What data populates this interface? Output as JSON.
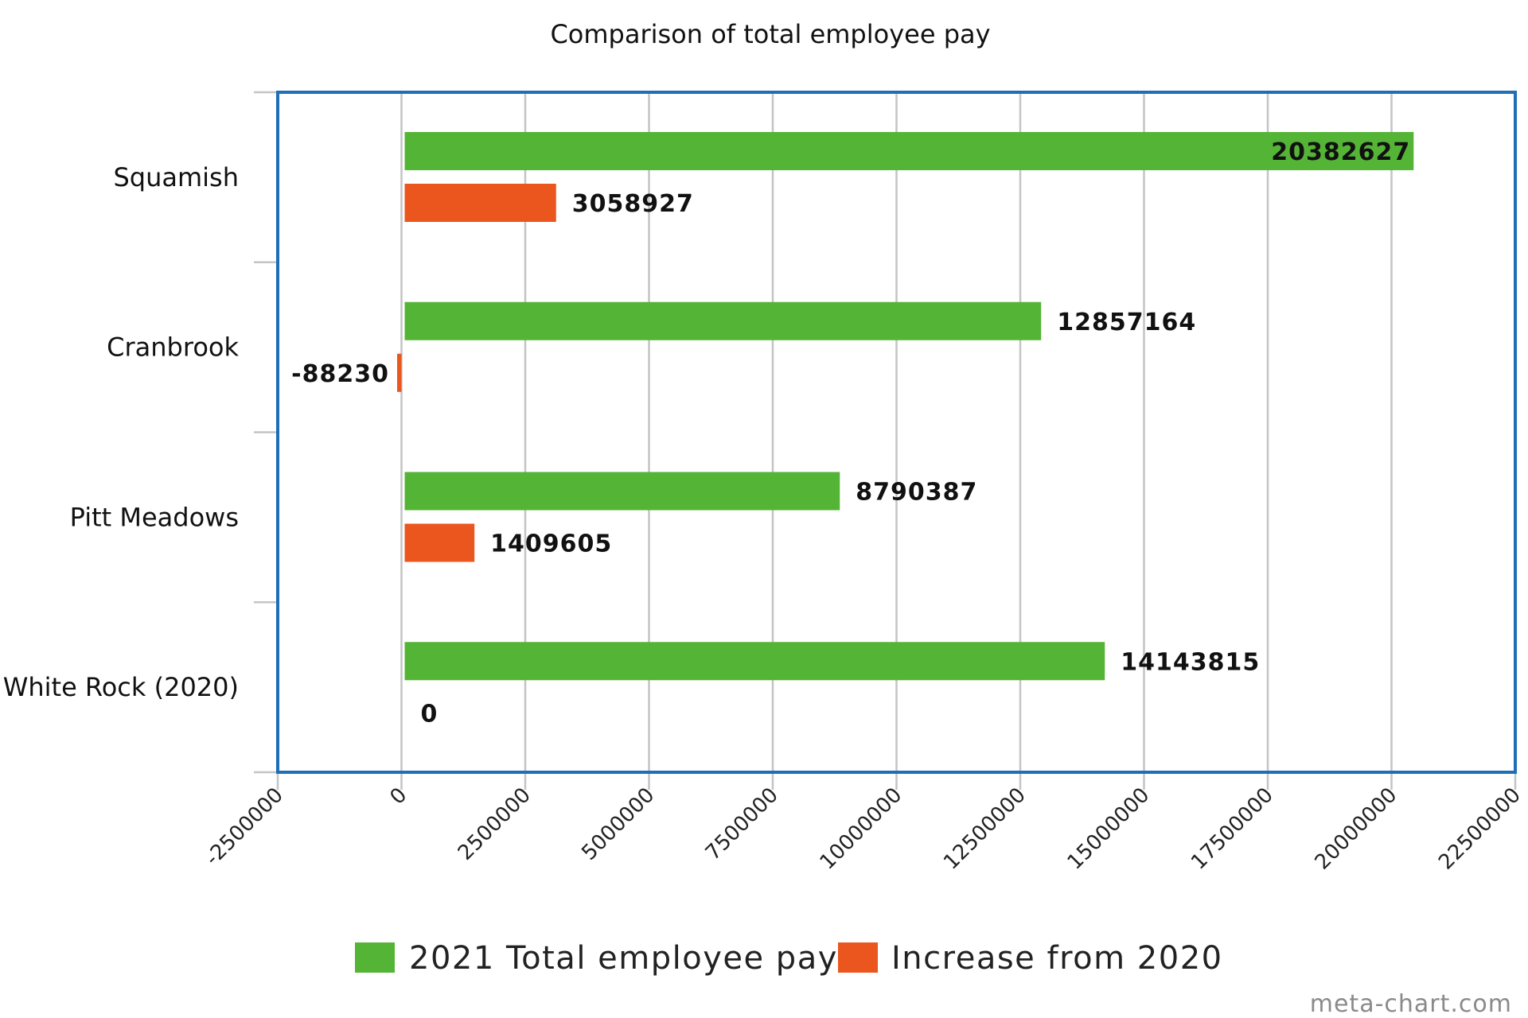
{
  "chart_data": {
    "type": "bar",
    "orientation": "horizontal",
    "title": "Comparison of total employee pay",
    "categories": [
      "Squamish",
      "Cranbrook",
      "Pitt Meadows",
      "White Rock (2020)"
    ],
    "series": [
      {
        "name": "2021 Total employee pay",
        "color": "#54b435",
        "values": [
          20382627,
          12857164,
          8790387,
          14143815
        ]
      },
      {
        "name": "Increase from 2020",
        "color": "#ea561e",
        "values": [
          3058927,
          -88230,
          1409605,
          0
        ]
      }
    ],
    "xlim": [
      -2500000,
      22500000
    ],
    "xticks": [
      "-2500000",
      "0",
      "2500000",
      "5000000",
      "7500000",
      "10000000",
      "12500000",
      "15000000",
      "17500000",
      "20000000",
      "22500000"
    ],
    "grid": true,
    "legend": "bottom",
    "frame_color": "#1f6fb8"
  },
  "watermark": "meta-chart.com"
}
